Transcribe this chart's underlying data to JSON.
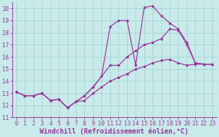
{
  "xlabel": "Windchill (Refroidissement éolien,°C)",
  "xlim": [
    -0.5,
    23.5
  ],
  "ylim": [
    11,
    20.5
  ],
  "yticks": [
    11,
    12,
    13,
    14,
    15,
    16,
    17,
    18,
    19,
    20
  ],
  "xticks": [
    0,
    1,
    2,
    3,
    4,
    5,
    6,
    7,
    8,
    9,
    10,
    11,
    12,
    13,
    14,
    15,
    16,
    17,
    18,
    19,
    20,
    21,
    22,
    23
  ],
  "bg_color": "#c8eaea",
  "grid_color": "#9ecece",
  "line_color": "#993399",
  "line1_x": [
    0,
    1,
    2,
    3,
    4,
    5,
    6,
    7,
    8,
    9,
    10,
    11,
    12,
    13,
    14,
    15,
    16,
    17,
    18,
    19,
    20,
    21,
    22,
    23
  ],
  "line1_y": [
    13.1,
    12.8,
    12.8,
    13.0,
    12.4,
    12.5,
    11.8,
    12.3,
    12.4,
    13.0,
    13.5,
    14.0,
    14.3,
    14.6,
    15.0,
    15.2,
    15.5,
    15.7,
    15.8,
    15.5,
    15.3,
    15.4,
    15.4,
    15.4
  ],
  "line2_x": [
    0,
    1,
    2,
    3,
    4,
    5,
    6,
    7,
    8,
    9,
    10,
    11,
    12,
    13,
    14,
    15,
    16,
    17,
    18,
    19,
    20,
    21,
    22,
    23
  ],
  "line2_y": [
    13.1,
    12.8,
    12.8,
    13.0,
    12.4,
    12.5,
    11.8,
    12.3,
    12.8,
    13.5,
    14.4,
    15.3,
    15.3,
    16.0,
    16.5,
    17.0,
    17.2,
    17.5,
    18.3,
    18.2,
    17.0,
    15.5,
    15.4,
    15.4
  ],
  "line3_x": [
    0,
    1,
    2,
    3,
    4,
    5,
    6,
    7,
    8,
    9,
    10,
    11,
    12,
    13,
    14,
    15,
    16,
    17,
    18,
    19,
    20,
    21,
    22,
    23
  ],
  "line3_y": [
    13.1,
    12.8,
    12.8,
    13.0,
    12.4,
    12.5,
    11.8,
    12.3,
    12.8,
    13.5,
    14.4,
    18.5,
    19.0,
    19.0,
    15.3,
    20.1,
    20.2,
    19.4,
    18.8,
    18.3,
    17.2,
    15.5,
    15.4,
    15.4
  ],
  "font_family": "monospace",
  "xlabel_fontsize": 7,
  "tick_fontsize": 6.0
}
